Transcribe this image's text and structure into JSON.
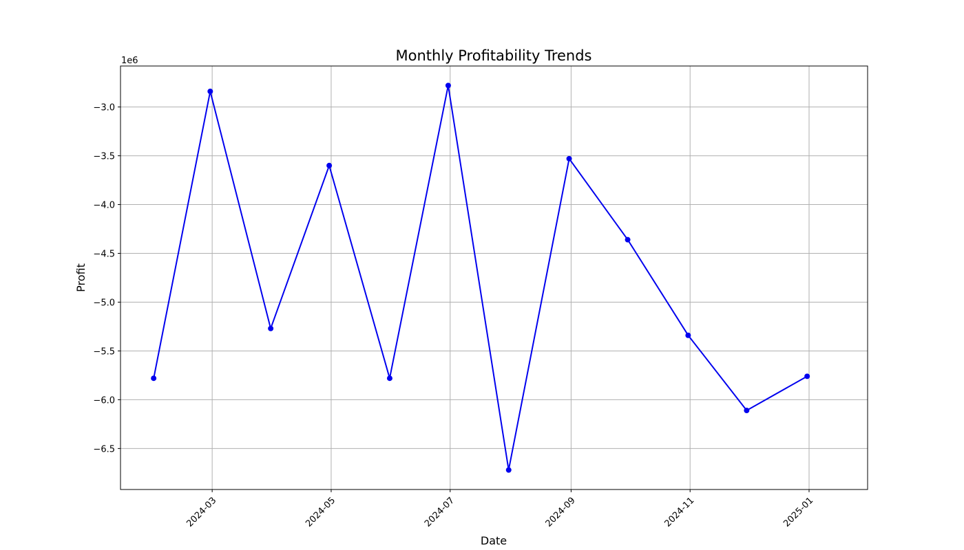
{
  "chart_data": {
    "type": "line",
    "title": "Monthly Profitability Trends",
    "xlabel": "Date",
    "ylabel": "Profit",
    "y_offset_label": "1e6",
    "y_scale_factor": 1000000,
    "grid": true,
    "x_tick_labels": [
      "2024-03",
      "2024-05",
      "2024-07",
      "2024-09",
      "2024-11",
      "2025-01"
    ],
    "y_ticks": [
      -3.0,
      -3.5,
      -4.0,
      -4.5,
      -5.0,
      -5.5,
      -6.0,
      -6.5
    ],
    "y_tick_labels": [
      "−3.0",
      "−3.5",
      "−4.0",
      "−4.5",
      "−5.0",
      "−5.5",
      "−6.0",
      "−6.5"
    ],
    "xlim": [
      "2024-01-14",
      "2025-01-31"
    ],
    "ylim": [
      -6.92,
      -2.58
    ],
    "series": [
      {
        "color": "#0000ee",
        "x": [
          "2024-01-31",
          "2024-02-29",
          "2024-03-31",
          "2024-04-30",
          "2024-05-31",
          "2024-06-30",
          "2024-07-31",
          "2024-08-31",
          "2024-09-30",
          "2024-10-31",
          "2024-11-30",
          "2024-12-31"
        ],
        "values": [
          -5.78,
          -2.84,
          -5.27,
          -3.6,
          -5.78,
          -2.78,
          -6.72,
          -3.53,
          -4.36,
          -5.34,
          -6.11,
          -5.76
        ]
      }
    ]
  }
}
